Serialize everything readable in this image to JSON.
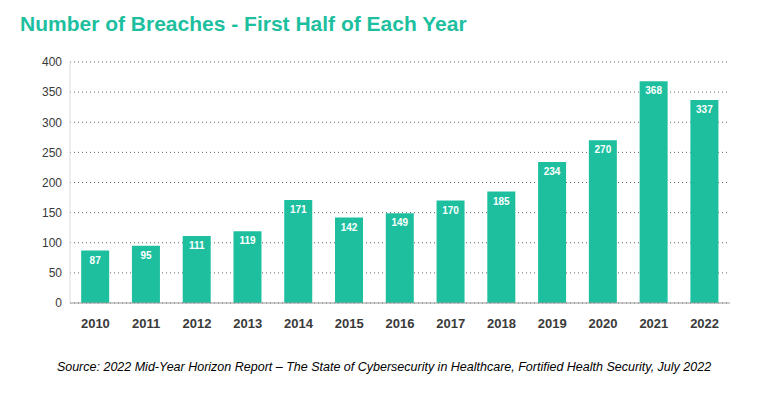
{
  "chart_data": {
    "type": "bar",
    "title": "Number of Breaches - First Half of Each Year",
    "annotation": "Source: 2022 Mid-Year Horizon Report – The State of Cybersecurity in Healthcare, Fortified Health Security, July 2022",
    "categories": [
      "2010",
      "2011",
      "2012",
      "2013",
      "2014",
      "2015",
      "2016",
      "2017",
      "2018",
      "2019",
      "2020",
      "2021",
      "2022"
    ],
    "values": [
      87,
      95,
      111,
      119,
      171,
      142,
      149,
      170,
      185,
      234,
      270,
      368,
      337
    ],
    "color": "#1dbf9f",
    "ylim": [
      0,
      400
    ],
    "yticks": [
      0,
      50,
      100,
      150,
      200,
      250,
      300,
      350,
      400
    ],
    "grid": true,
    "data_labels": true
  }
}
